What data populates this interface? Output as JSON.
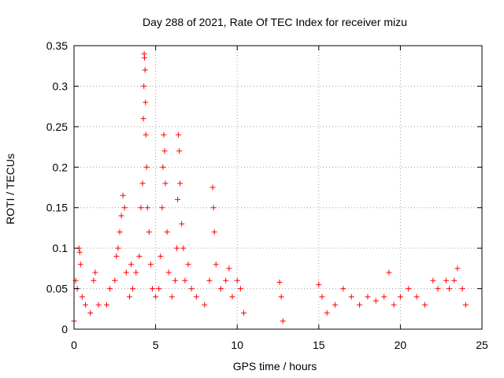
{
  "chart_data": {
    "type": "scatter",
    "title": "Day 288 of 2021, Rate Of TEC Index for receiver mizu",
    "xlabel": "GPS time / hours",
    "ylabel": "ROTI / TECUs",
    "xlim": [
      0,
      25
    ],
    "ylim": [
      0,
      0.35
    ],
    "x_ticks": [
      0,
      5,
      10,
      15,
      20,
      25
    ],
    "y_ticks": [
      0,
      0.05,
      0.1,
      0.15,
      0.2,
      0.25,
      0.3,
      0.35
    ],
    "x_tick_labels": [
      "0",
      "5",
      "10",
      "15",
      "20",
      "25"
    ],
    "y_tick_labels": [
      "0",
      "0.05",
      "0.1",
      "0.15",
      "0.2",
      "0.25",
      "0.3",
      "0.35"
    ],
    "grid": true,
    "marker": "+",
    "color": "#ff0000",
    "data_gaps_hours": [
      [
        10.5,
        12.6
      ],
      [
        12.9,
        14.9
      ]
    ],
    "series": [
      {
        "name": "ROTI",
        "points": [
          [
            0.0,
            0.01
          ],
          [
            0.1,
            0.06
          ],
          [
            0.2,
            0.05
          ],
          [
            0.3,
            0.1
          ],
          [
            0.35,
            0.095
          ],
          [
            0.4,
            0.08
          ],
          [
            0.5,
            0.04
          ],
          [
            0.7,
            0.03
          ],
          [
            1.0,
            0.02
          ],
          [
            1.2,
            0.06
          ],
          [
            1.3,
            0.07
          ],
          [
            1.5,
            0.03
          ],
          [
            2.0,
            0.03
          ],
          [
            2.2,
            0.05
          ],
          [
            2.5,
            0.06
          ],
          [
            2.6,
            0.09
          ],
          [
            2.7,
            0.1
          ],
          [
            2.8,
            0.12
          ],
          [
            2.9,
            0.14
          ],
          [
            3.0,
            0.165
          ],
          [
            3.1,
            0.15
          ],
          [
            3.2,
            0.07
          ],
          [
            3.4,
            0.04
          ],
          [
            3.5,
            0.08
          ],
          [
            3.6,
            0.05
          ],
          [
            3.8,
            0.07
          ],
          [
            4.0,
            0.09
          ],
          [
            4.1,
            0.15
          ],
          [
            4.2,
            0.18
          ],
          [
            4.25,
            0.26
          ],
          [
            4.28,
            0.3
          ],
          [
            4.3,
            0.34
          ],
          [
            4.32,
            0.335
          ],
          [
            4.35,
            0.32
          ],
          [
            4.38,
            0.28
          ],
          [
            4.4,
            0.24
          ],
          [
            4.45,
            0.2
          ],
          [
            4.5,
            0.15
          ],
          [
            4.6,
            0.12
          ],
          [
            4.7,
            0.08
          ],
          [
            4.8,
            0.05
          ],
          [
            5.0,
            0.04
          ],
          [
            5.2,
            0.05
          ],
          [
            5.3,
            0.09
          ],
          [
            5.4,
            0.15
          ],
          [
            5.45,
            0.2
          ],
          [
            5.5,
            0.24
          ],
          [
            5.55,
            0.22
          ],
          [
            5.6,
            0.18
          ],
          [
            5.7,
            0.12
          ],
          [
            5.8,
            0.07
          ],
          [
            6.0,
            0.04
          ],
          [
            6.2,
            0.06
          ],
          [
            6.3,
            0.1
          ],
          [
            6.35,
            0.16
          ],
          [
            6.4,
            0.24
          ],
          [
            6.45,
            0.22
          ],
          [
            6.5,
            0.18
          ],
          [
            6.6,
            0.13
          ],
          [
            6.7,
            0.1
          ],
          [
            6.8,
            0.06
          ],
          [
            7.0,
            0.08
          ],
          [
            7.2,
            0.05
          ],
          [
            7.5,
            0.04
          ],
          [
            8.0,
            0.03
          ],
          [
            8.3,
            0.06
          ],
          [
            8.5,
            0.175
          ],
          [
            8.55,
            0.15
          ],
          [
            8.6,
            0.12
          ],
          [
            8.7,
            0.08
          ],
          [
            9.0,
            0.05
          ],
          [
            9.3,
            0.06
          ],
          [
            9.5,
            0.075
          ],
          [
            9.7,
            0.04
          ],
          [
            10.0,
            0.06
          ],
          [
            10.2,
            0.05
          ],
          [
            10.4,
            0.02
          ],
          [
            12.6,
            0.058
          ],
          [
            12.7,
            0.04
          ],
          [
            12.8,
            0.01
          ],
          [
            15.0,
            0.055
          ],
          [
            15.2,
            0.04
          ],
          [
            15.5,
            0.02
          ],
          [
            16.0,
            0.03
          ],
          [
            16.5,
            0.05
          ],
          [
            17.0,
            0.04
          ],
          [
            17.5,
            0.03
          ],
          [
            18.0,
            0.04
          ],
          [
            18.5,
            0.035
          ],
          [
            19.0,
            0.04
          ],
          [
            19.3,
            0.07
          ],
          [
            19.6,
            0.03
          ],
          [
            20.0,
            0.04
          ],
          [
            20.5,
            0.05
          ],
          [
            21.0,
            0.04
          ],
          [
            21.5,
            0.03
          ],
          [
            22.0,
            0.06
          ],
          [
            22.3,
            0.05
          ],
          [
            22.8,
            0.06
          ],
          [
            23.0,
            0.05
          ],
          [
            23.3,
            0.06
          ],
          [
            23.5,
            0.075
          ],
          [
            23.8,
            0.05
          ],
          [
            24.0,
            0.03
          ]
        ]
      }
    ]
  }
}
